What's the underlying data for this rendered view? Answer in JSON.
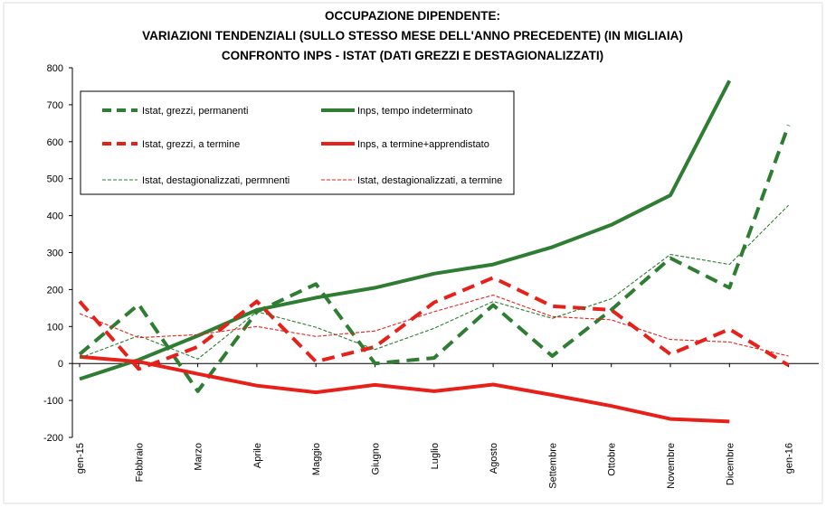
{
  "chart_data": {
    "type": "line",
    "title_lines": [
      "OCCUPAZIONE DIPENDENTE:",
      "VARIAZIONI TENDENZIALI (SULLO STESSO MESE DELL'ANNO PRECEDENTE) (IN MIGLIAIA)",
      "CONFRONTO INPS - ISTAT (DATI GREZZI E DESTAGIONALIZZATI)"
    ],
    "categories": [
      "gen-15",
      "Febbraio",
      "Marzo",
      "Aprile",
      "Maggio",
      "Giugno",
      "Luglio",
      "Agosto",
      "Settembre",
      "Ottobre",
      "Novembre",
      "Dicembre",
      "gen-16"
    ],
    "ylim": [
      -200,
      800
    ],
    "yticks": [
      -200,
      -100,
      0,
      100,
      200,
      300,
      400,
      500,
      600,
      700,
      800
    ],
    "grid": false,
    "legend_position": "top-left-inside",
    "series": [
      {
        "name": "Istat, grezzi, permanenti",
        "color": "#2e7d32",
        "style": "thick-dash",
        "values": [
          25,
          160,
          -75,
          140,
          215,
          0,
          15,
          158,
          20,
          145,
          285,
          205,
          645
        ]
      },
      {
        "name": "Inps, tempo indeterminato",
        "color": "#2e7d32",
        "style": "thick-solid",
        "values": [
          -42,
          10,
          75,
          145,
          178,
          205,
          243,
          268,
          315,
          375,
          455,
          765,
          null
        ]
      },
      {
        "name": "Istat, grezzi, a termine",
        "color": "#e8201a",
        "style": "thick-dash",
        "values": [
          168,
          -15,
          45,
          168,
          5,
          45,
          165,
          232,
          155,
          145,
          25,
          93,
          -5
        ]
      },
      {
        "name": "Inps, a termine+apprendistato",
        "color": "#e8201a",
        "style": "thick-solid",
        "values": [
          18,
          5,
          -28,
          -60,
          -78,
          -58,
          -75,
          -57,
          -85,
          -115,
          -150,
          -157,
          null
        ]
      },
      {
        "name": "Istat, destagionalizzati, permnenti",
        "color": "#2e7d32",
        "style": "thin-dash",
        "values": [
          15,
          75,
          12,
          140,
          98,
          38,
          95,
          168,
          122,
          175,
          295,
          268,
          428
        ]
      },
      {
        "name": "Istat, destagionalizzati, a termine",
        "color": "#e8201a",
        "style": "thin-dash",
        "values": [
          135,
          70,
          78,
          100,
          73,
          88,
          140,
          185,
          127,
          118,
          65,
          58,
          20
        ]
      }
    ]
  }
}
